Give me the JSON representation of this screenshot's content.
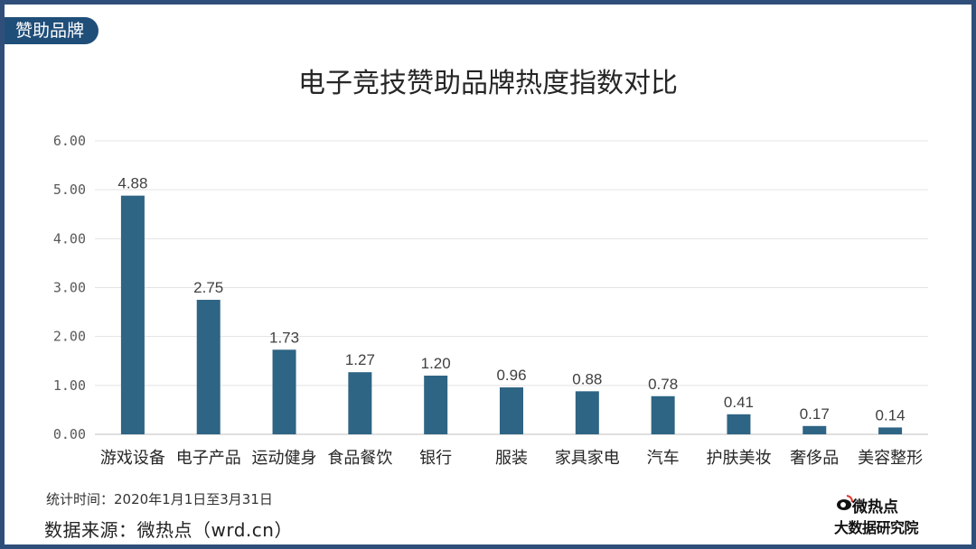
{
  "tag": "赞助品牌",
  "note": "统计时间：2020年1月1日至3月31日",
  "source": "数据来源：微热点（wrd.cn）",
  "logo": {
    "line1": "微热点",
    "line2": "大数据研究院",
    "icon": "weibo-eye-icon"
  },
  "colors": {
    "bar": "#2e6484",
    "tag": "#1f4e79",
    "border": "#2f4f7a"
  },
  "chart_data": {
    "type": "bar",
    "title": "电子竞技赞助品牌热度指数对比",
    "categories": [
      "游戏设备",
      "电子产品",
      "运动健身",
      "食品餐饮",
      "银行",
      "服装",
      "家具家电",
      "汽车",
      "护肤美妆",
      "奢侈品",
      "美容整形"
    ],
    "values": [
      4.88,
      2.75,
      1.73,
      1.27,
      1.2,
      0.96,
      0.88,
      0.78,
      0.41,
      0.17,
      0.14
    ],
    "value_labels": [
      "4.88",
      "2.75",
      "1.73",
      "1.27",
      "1.20",
      "0.96",
      "0.88",
      "0.78",
      "0.41",
      "0.17",
      "0.14"
    ],
    "yticks": [
      "0.00",
      "1.00",
      "2.00",
      "3.00",
      "4.00",
      "5.00",
      "6.00"
    ],
    "ylim": [
      0,
      6
    ],
    "grid": true,
    "legend": "none"
  }
}
